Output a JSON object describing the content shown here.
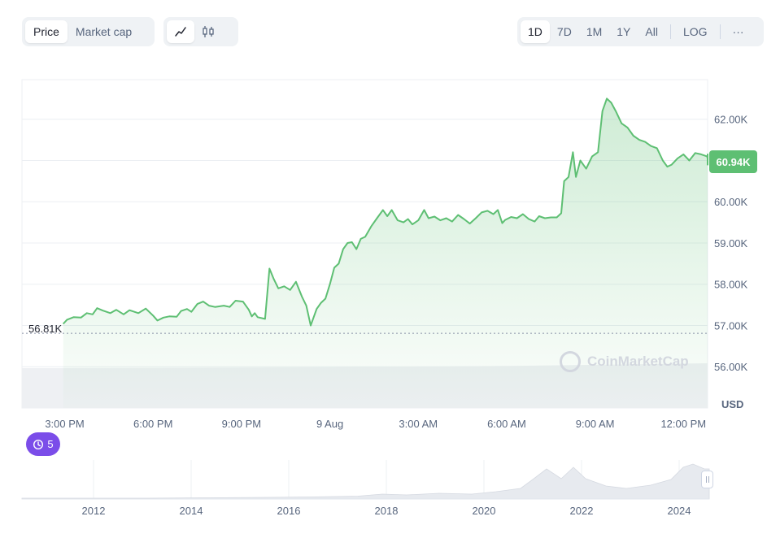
{
  "toolbar": {
    "metric_tabs": [
      {
        "label": "Price",
        "active": true
      },
      {
        "label": "Market cap",
        "active": false
      }
    ],
    "chart_type_buttons": [
      {
        "icon": "line-chart-icon",
        "active": true
      },
      {
        "icon": "candlestick-icon",
        "active": false
      }
    ],
    "range_tabs": [
      {
        "label": "1D",
        "active": true
      },
      {
        "label": "7D",
        "active": false
      },
      {
        "label": "1M",
        "active": false
      },
      {
        "label": "1Y",
        "active": false
      },
      {
        "label": "All",
        "active": false
      }
    ],
    "log_label": "LOG",
    "more_label": "···"
  },
  "chart": {
    "current_price_label": "60.94K",
    "start_price_label": "56.81K",
    "currency": "USD",
    "watermark": "CoinMarketCap",
    "history_badge_count": "5",
    "colors": {
      "line": "#5ebf73",
      "fill": "#5ebf73",
      "volume": "#eef0f3",
      "badge": "#7b4de9"
    }
  },
  "chart_data": {
    "type": "area",
    "y_axis": {
      "ticks": [
        "56.00K",
        "57.00K",
        "58.00K",
        "59.00K",
        "60.00K",
        "61.00K",
        "62.00K"
      ],
      "tick_values": [
        56000,
        57000,
        58000,
        59000,
        60000,
        61000,
        62000
      ],
      "ylim": [
        55000,
        62960
      ]
    },
    "x_axis": {
      "tick_labels": [
        "3:00 PM",
        "6:00 PM",
        "9:00 PM",
        "9 Aug",
        "3:00 AM",
        "6:00 AM",
        "9:00 AM",
        "12:00 PM"
      ],
      "tick_hours": [
        0,
        3,
        6,
        9,
        12,
        15,
        18,
        21
      ],
      "xlim_hours": [
        -1.45,
        21.82
      ]
    },
    "reference_line": {
      "value": 56810,
      "label": "56.81K",
      "style": "dotted"
    },
    "series": [
      {
        "values": [
          [
            -0.05,
            57040
          ],
          [
            0.08,
            57140
          ],
          [
            0.3,
            57200
          ],
          [
            0.55,
            57190
          ],
          [
            0.75,
            57300
          ],
          [
            0.95,
            57270
          ],
          [
            1.1,
            57420
          ],
          [
            1.3,
            57360
          ],
          [
            1.55,
            57300
          ],
          [
            1.75,
            57380
          ],
          [
            2.0,
            57270
          ],
          [
            2.2,
            57370
          ],
          [
            2.5,
            57300
          ],
          [
            2.75,
            57410
          ],
          [
            3.0,
            57240
          ],
          [
            3.15,
            57120
          ],
          [
            3.35,
            57190
          ],
          [
            3.55,
            57220
          ],
          [
            3.8,
            57210
          ],
          [
            3.95,
            57350
          ],
          [
            4.15,
            57400
          ],
          [
            4.3,
            57330
          ],
          [
            4.5,
            57520
          ],
          [
            4.7,
            57580
          ],
          [
            4.9,
            57480
          ],
          [
            5.1,
            57450
          ],
          [
            5.4,
            57480
          ],
          [
            5.6,
            57450
          ],
          [
            5.8,
            57600
          ],
          [
            6.05,
            57580
          ],
          [
            6.25,
            57380
          ],
          [
            6.35,
            57220
          ],
          [
            6.45,
            57300
          ],
          [
            6.55,
            57200
          ],
          [
            6.8,
            57160
          ],
          [
            6.95,
            58380
          ],
          [
            7.1,
            58120
          ],
          [
            7.25,
            57900
          ],
          [
            7.45,
            57950
          ],
          [
            7.65,
            57860
          ],
          [
            7.85,
            58060
          ],
          [
            8.05,
            57700
          ],
          [
            8.2,
            57480
          ],
          [
            8.35,
            57000
          ],
          [
            8.55,
            57400
          ],
          [
            8.7,
            57550
          ],
          [
            8.85,
            57650
          ],
          [
            9.0,
            58000
          ],
          [
            9.15,
            58400
          ],
          [
            9.3,
            58500
          ],
          [
            9.45,
            58850
          ],
          [
            9.6,
            59000
          ],
          [
            9.75,
            59020
          ],
          [
            9.9,
            58850
          ],
          [
            10.05,
            59100
          ],
          [
            10.2,
            59150
          ],
          [
            10.4,
            59400
          ],
          [
            10.6,
            59600
          ],
          [
            10.8,
            59800
          ],
          [
            10.95,
            59650
          ],
          [
            11.1,
            59800
          ],
          [
            11.3,
            59550
          ],
          [
            11.5,
            59500
          ],
          [
            11.65,
            59580
          ],
          [
            11.8,
            59450
          ],
          [
            12.0,
            59550
          ],
          [
            12.2,
            59800
          ],
          [
            12.35,
            59600
          ],
          [
            12.55,
            59640
          ],
          [
            12.75,
            59550
          ],
          [
            12.95,
            59600
          ],
          [
            13.15,
            59520
          ],
          [
            13.35,
            59680
          ],
          [
            13.55,
            59580
          ],
          [
            13.75,
            59470
          ],
          [
            13.95,
            59600
          ],
          [
            14.15,
            59740
          ],
          [
            14.35,
            59780
          ],
          [
            14.55,
            59700
          ],
          [
            14.7,
            59800
          ],
          [
            14.85,
            59480
          ],
          [
            14.95,
            59560
          ],
          [
            15.15,
            59630
          ],
          [
            15.35,
            59600
          ],
          [
            15.55,
            59700
          ],
          [
            15.75,
            59580
          ],
          [
            15.95,
            59520
          ],
          [
            16.1,
            59650
          ],
          [
            16.3,
            59600
          ],
          [
            16.5,
            59620
          ],
          [
            16.7,
            59620
          ],
          [
            16.85,
            59720
          ],
          [
            16.95,
            60500
          ],
          [
            17.1,
            60600
          ],
          [
            17.25,
            61200
          ],
          [
            17.35,
            60600
          ],
          [
            17.5,
            61000
          ],
          [
            17.7,
            60800
          ],
          [
            17.9,
            61100
          ],
          [
            18.1,
            61200
          ],
          [
            18.25,
            62200
          ],
          [
            18.4,
            62500
          ],
          [
            18.55,
            62400
          ],
          [
            18.7,
            62200
          ],
          [
            18.9,
            61900
          ],
          [
            19.1,
            61800
          ],
          [
            19.3,
            61600
          ],
          [
            19.5,
            61500
          ],
          [
            19.7,
            61450
          ],
          [
            19.9,
            61350
          ],
          [
            20.1,
            61300
          ],
          [
            20.3,
            61000
          ],
          [
            20.45,
            60850
          ],
          [
            20.6,
            60900
          ],
          [
            20.8,
            61050
          ],
          [
            21.0,
            61150
          ],
          [
            21.2,
            61000
          ],
          [
            21.4,
            61180
          ],
          [
            21.6,
            61150
          ],
          [
            21.8,
            61100
          ],
          [
            21.95,
            61050
          ],
          [
            22.15,
            61100
          ],
          [
            22.35,
            61030
          ],
          [
            22.55,
            61150
          ],
          [
            22.75,
            61150
          ],
          [
            22.95,
            61100
          ],
          [
            23.15,
            61050
          ],
          [
            23.35,
            61030
          ],
          [
            23.55,
            61000
          ],
          [
            23.75,
            60960
          ],
          [
            23.95,
            60900
          ],
          [
            24.15,
            60940
          ]
        ]
      }
    ],
    "navigator": {
      "year_labels": [
        "2012",
        "2014",
        "2016",
        "2018",
        "2020",
        "2022",
        "2024"
      ]
    }
  }
}
